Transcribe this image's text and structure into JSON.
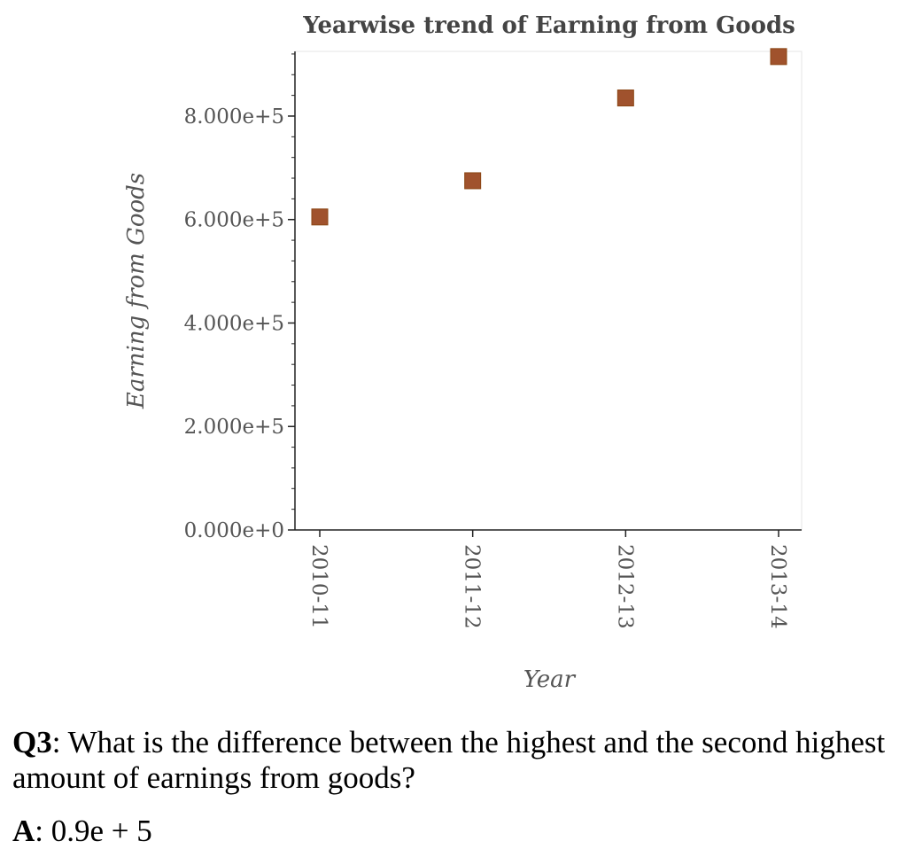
{
  "chart_data": {
    "type": "scatter",
    "title": "Yearwise trend of Earning from Goods",
    "xlabel": "Year",
    "ylabel": "Earning from Goods",
    "categories": [
      "2010-11",
      "2011-12",
      "2012-13",
      "2013-14"
    ],
    "values": [
      605000,
      675000,
      835000,
      915000
    ],
    "ylim": [
      0,
      925000
    ],
    "yticks": [
      0,
      200000,
      400000,
      600000,
      800000
    ],
    "ytick_labels": [
      "0.000e+0",
      "2.000e+5",
      "4.000e+5",
      "6.000e+5",
      "8.000e+5"
    ],
    "marker": "square",
    "marker_color": "#a0522d",
    "grid": false
  },
  "qa": {
    "q_label": "Q3",
    "question": "What is the difference between the highest and the second highest amount of earnings from goods?",
    "a_label": "A",
    "answer": "0.9e + 5"
  }
}
